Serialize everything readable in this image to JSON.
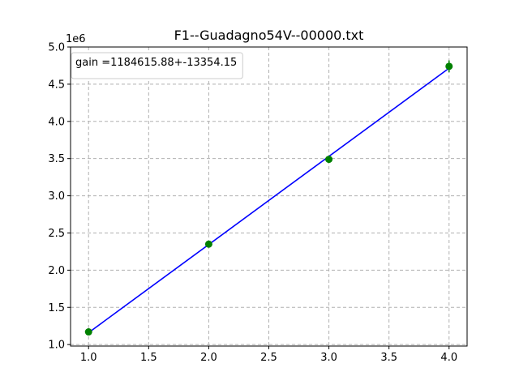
{
  "chart_data": {
    "type": "scatter",
    "title": "F1--Guadagno54V--00000.txt",
    "xlabel": "",
    "ylabel": "",
    "y_offset_text": "1e6",
    "xlim": [
      0.85,
      4.15
    ],
    "ylim": [
      0.98,
      5.0
    ],
    "xticks": [
      1.0,
      1.5,
      2.0,
      2.5,
      3.0,
      3.5,
      4.0
    ],
    "xtick_labels": [
      "1.0",
      "1.5",
      "2.0",
      "2.5",
      "3.0",
      "3.5",
      "4.0"
    ],
    "yticks": [
      1.0,
      1.5,
      2.0,
      2.5,
      3.0,
      3.5,
      4.0,
      4.5,
      5.0
    ],
    "ytick_labels": [
      "1.0",
      "1.5",
      "2.0",
      "2.5",
      "3.0",
      "3.5",
      "4.0",
      "4.5",
      "5.0"
    ],
    "grid": true,
    "legend_placement": "upper-left",
    "legend_text": "gain =1184615.88+-13354.15",
    "points": {
      "x": [
        1.0,
        2.0,
        3.0,
        4.0
      ],
      "y": [
        1.17,
        2.35,
        3.49,
        4.74
      ],
      "yerr": [
        0.02,
        0.02,
        0.03,
        0.08
      ],
      "color": "#008000"
    },
    "fit_line": {
      "x": [
        1.0,
        4.0
      ],
      "y": [
        1.16,
        4.715
      ],
      "color": "#0000ff"
    }
  }
}
